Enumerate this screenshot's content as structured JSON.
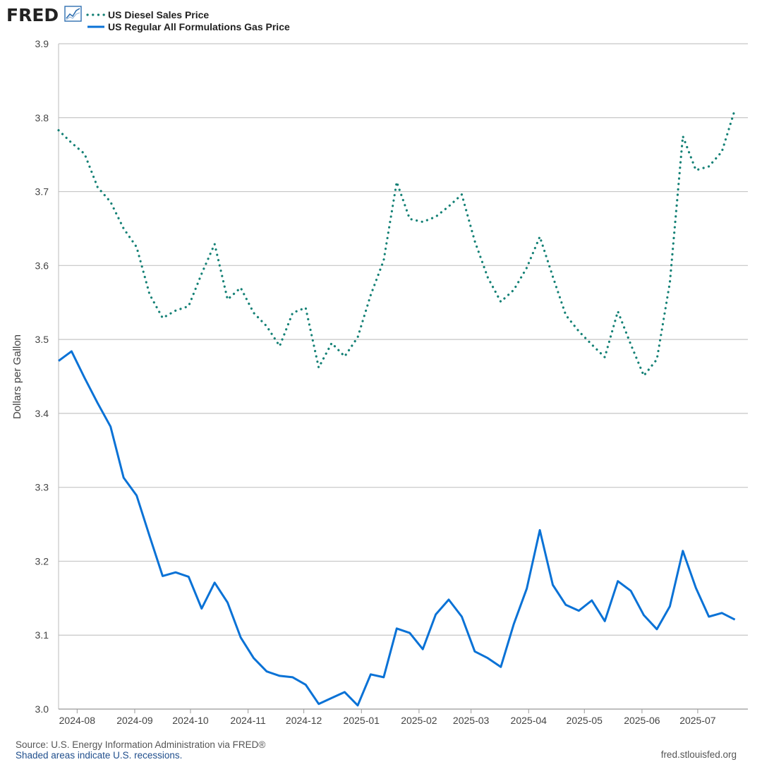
{
  "header": {
    "logo_text": "FRED",
    "logo_icon": "line-chart-icon"
  },
  "footer": {
    "source": "Source: U.S. Energy Information Administration via FRED®",
    "recessions": "Shaded areas indicate U.S. recessions.",
    "url": "fred.stlouisfed.org"
  },
  "chart_data": {
    "type": "line",
    "title": "",
    "xlabel": "",
    "ylabel": "Dollars per Gallon",
    "ylim": [
      3.0,
      3.9
    ],
    "yticks": [
      "3.0",
      "3.1",
      "3.2",
      "3.3",
      "3.4",
      "3.5",
      "3.6",
      "3.7",
      "3.8",
      "3.9"
    ],
    "xlim": [
      "2024-07-22",
      "2025-07-28"
    ],
    "xtick_labels": [
      "2024-08",
      "2024-09",
      "2024-10",
      "2024-11",
      "2024-12",
      "2025-01",
      "2025-02",
      "2025-03",
      "2025-04",
      "2025-05",
      "2025-06",
      "2025-07"
    ],
    "xtick_dates": [
      "2024-08-01",
      "2024-09-01",
      "2024-10-01",
      "2024-11-01",
      "2024-12-01",
      "2025-01-01",
      "2025-02-01",
      "2025-03-01",
      "2025-04-01",
      "2025-05-01",
      "2025-06-01",
      "2025-07-01"
    ],
    "grid": true,
    "legend_position": "top-left",
    "series": [
      {
        "name": "US Diesel Sales Price",
        "style": "dotted",
        "color": "#138075",
        "points": [
          [
            "2024-07-22",
            3.783
          ],
          [
            "2024-07-29",
            3.766
          ],
          [
            "2024-08-05",
            3.751
          ],
          [
            "2024-08-12",
            3.706
          ],
          [
            "2024-08-19",
            3.686
          ],
          [
            "2024-08-26",
            3.65
          ],
          [
            "2024-09-02",
            3.625
          ],
          [
            "2024-09-09",
            3.561
          ],
          [
            "2024-09-16",
            3.529
          ],
          [
            "2024-09-23",
            3.539
          ],
          [
            "2024-09-30",
            3.545
          ],
          [
            "2024-10-07",
            3.589
          ],
          [
            "2024-10-14",
            3.629
          ],
          [
            "2024-10-21",
            3.554
          ],
          [
            "2024-10-28",
            3.57
          ],
          [
            "2024-11-04",
            3.536
          ],
          [
            "2024-11-11",
            3.518
          ],
          [
            "2024-11-18",
            3.491
          ],
          [
            "2024-11-25",
            3.536
          ],
          [
            "2024-12-02",
            3.543
          ],
          [
            "2024-12-09",
            3.462
          ],
          [
            "2024-12-16",
            3.495
          ],
          [
            "2024-12-23",
            3.477
          ],
          [
            "2024-12-30",
            3.503
          ],
          [
            "2025-01-06",
            3.56
          ],
          [
            "2025-01-13",
            3.607
          ],
          [
            "2025-01-20",
            3.713
          ],
          [
            "2025-01-27",
            3.663
          ],
          [
            "2025-02-03",
            3.659
          ],
          [
            "2025-02-10",
            3.666
          ],
          [
            "2025-02-17",
            3.68
          ],
          [
            "2025-02-24",
            3.696
          ],
          [
            "2025-03-03",
            3.633
          ],
          [
            "2025-03-10",
            3.584
          ],
          [
            "2025-03-17",
            3.551
          ],
          [
            "2025-03-24",
            3.567
          ],
          [
            "2025-03-31",
            3.597
          ],
          [
            "2025-04-07",
            3.639
          ],
          [
            "2025-04-14",
            3.585
          ],
          [
            "2025-04-21",
            3.533
          ],
          [
            "2025-04-28",
            3.511
          ],
          [
            "2025-05-05",
            3.493
          ],
          [
            "2025-05-12",
            3.476
          ],
          [
            "2025-05-19",
            3.538
          ],
          [
            "2025-05-26",
            3.493
          ],
          [
            "2025-06-02",
            3.451
          ],
          [
            "2025-06-09",
            3.473
          ],
          [
            "2025-06-16",
            3.577
          ],
          [
            "2025-06-23",
            3.775
          ],
          [
            "2025-06-30",
            3.729
          ],
          [
            "2025-07-07",
            3.734
          ],
          [
            "2025-07-14",
            3.754
          ],
          [
            "2025-07-21",
            3.811
          ]
        ]
      },
      {
        "name": "US Regular All Formulations Gas Price",
        "style": "solid",
        "color": "#0a72d6",
        "points": [
          [
            "2024-07-22",
            3.471
          ],
          [
            "2024-07-29",
            3.484
          ],
          [
            "2024-08-05",
            3.448
          ],
          [
            "2024-08-12",
            3.414
          ],
          [
            "2024-08-19",
            3.382
          ],
          [
            "2024-08-26",
            3.313
          ],
          [
            "2024-09-02",
            3.289
          ],
          [
            "2024-09-09",
            3.234
          ],
          [
            "2024-09-16",
            3.18
          ],
          [
            "2024-09-23",
            3.185
          ],
          [
            "2024-09-30",
            3.179
          ],
          [
            "2024-10-07",
            3.136
          ],
          [
            "2024-10-14",
            3.171
          ],
          [
            "2024-10-21",
            3.144
          ],
          [
            "2024-10-28",
            3.097
          ],
          [
            "2024-11-04",
            3.069
          ],
          [
            "2024-11-11",
            3.051
          ],
          [
            "2024-11-18",
            3.045
          ],
          [
            "2024-11-25",
            3.043
          ],
          [
            "2024-12-02",
            3.033
          ],
          [
            "2024-12-09",
            3.007
          ],
          [
            "2024-12-16",
            3.015
          ],
          [
            "2024-12-23",
            3.023
          ],
          [
            "2024-12-30",
            3.005
          ],
          [
            "2025-01-06",
            3.047
          ],
          [
            "2025-01-13",
            3.043
          ],
          [
            "2025-01-20",
            3.109
          ],
          [
            "2025-01-27",
            3.103
          ],
          [
            "2025-02-03",
            3.081
          ],
          [
            "2025-02-10",
            3.128
          ],
          [
            "2025-02-17",
            3.148
          ],
          [
            "2025-02-24",
            3.125
          ],
          [
            "2025-03-03",
            3.078
          ],
          [
            "2025-03-10",
            3.069
          ],
          [
            "2025-03-17",
            3.057
          ],
          [
            "2025-03-24",
            3.115
          ],
          [
            "2025-03-31",
            3.163
          ],
          [
            "2025-04-07",
            3.242
          ],
          [
            "2025-04-14",
            3.168
          ],
          [
            "2025-04-21",
            3.141
          ],
          [
            "2025-04-28",
            3.133
          ],
          [
            "2025-05-05",
            3.147
          ],
          [
            "2025-05-12",
            3.119
          ],
          [
            "2025-05-19",
            3.173
          ],
          [
            "2025-05-26",
            3.16
          ],
          [
            "2025-06-02",
            3.127
          ],
          [
            "2025-06-09",
            3.108
          ],
          [
            "2025-06-16",
            3.139
          ],
          [
            "2025-06-23",
            3.214
          ],
          [
            "2025-06-30",
            3.164
          ],
          [
            "2025-07-07",
            3.125
          ],
          [
            "2025-07-14",
            3.13
          ],
          [
            "2025-07-21",
            3.121
          ]
        ]
      }
    ]
  }
}
